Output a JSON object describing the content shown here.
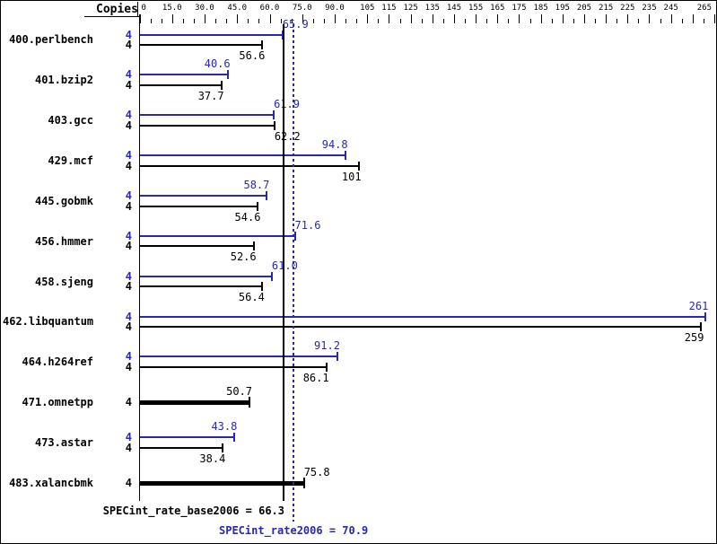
{
  "header": {
    "copies_label": "Copies"
  },
  "chart_data": {
    "type": "bar",
    "orientation": "horizontal",
    "axis": {
      "min": 0,
      "max": 265,
      "minor_step": 5,
      "major_ticks": [
        {
          "value": 0,
          "label": "0"
        },
        {
          "value": 15,
          "label": "15.0"
        },
        {
          "value": 30,
          "label": "30.0"
        },
        {
          "value": 45,
          "label": "45.0"
        },
        {
          "value": 60,
          "label": "60.0"
        },
        {
          "value": 75,
          "label": "75.0"
        },
        {
          "value": 90,
          "label": "90.0"
        },
        {
          "value": 105,
          "label": "105"
        },
        {
          "value": 115,
          "label": "115"
        },
        {
          "value": 125,
          "label": "125"
        },
        {
          "value": 135,
          "label": "135"
        },
        {
          "value": 145,
          "label": "145"
        },
        {
          "value": 155,
          "label": "155"
        },
        {
          "value": 165,
          "label": "165"
        },
        {
          "value": 175,
          "label": "175"
        },
        {
          "value": 185,
          "label": "185"
        },
        {
          "value": 195,
          "label": "195"
        },
        {
          "value": 205,
          "label": "205"
        },
        {
          "value": 215,
          "label": "215"
        },
        {
          "value": 225,
          "label": "225"
        },
        {
          "value": 235,
          "label": "235"
        },
        {
          "value": 245,
          "label": "245"
        },
        {
          "value": 255,
          "label": ""
        },
        {
          "value": 265,
          "label": "265"
        }
      ]
    },
    "series_names": [
      "peak",
      "base"
    ],
    "rows": [
      {
        "name": "400.perlbench",
        "peak": {
          "copies": "4",
          "value": 65.9,
          "label": "65.9"
        },
        "base": {
          "copies": "4",
          "value": 56.6,
          "label": "56.6"
        }
      },
      {
        "name": "401.bzip2",
        "peak": {
          "copies": "4",
          "value": 40.6,
          "label": "40.6"
        },
        "base": {
          "copies": "4",
          "value": 37.7,
          "label": "37.7"
        }
      },
      {
        "name": "403.gcc",
        "peak": {
          "copies": "4",
          "value": 61.9,
          "label": "61.9"
        },
        "base": {
          "copies": "4",
          "value": 62.2,
          "label": "62.2"
        }
      },
      {
        "name": "429.mcf",
        "peak": {
          "copies": "4",
          "value": 94.8,
          "label": "94.8"
        },
        "base": {
          "copies": "4",
          "value": 101,
          "label": "101"
        }
      },
      {
        "name": "445.gobmk",
        "peak": {
          "copies": "4",
          "value": 58.7,
          "label": "58.7"
        },
        "base": {
          "copies": "4",
          "value": 54.6,
          "label": "54.6"
        }
      },
      {
        "name": "456.hmmer",
        "peak": {
          "copies": "4",
          "value": 71.6,
          "label": "71.6"
        },
        "base": {
          "copies": "4",
          "value": 52.6,
          "label": "52.6"
        }
      },
      {
        "name": "458.sjeng",
        "peak": {
          "copies": "4",
          "value": 61.0,
          "label": "61.0"
        },
        "base": {
          "copies": "4",
          "value": 56.4,
          "label": "56.4"
        }
      },
      {
        "name": "462.libquantum",
        "peak": {
          "copies": "4",
          "value": 261,
          "label": "261"
        },
        "base": {
          "copies": "4",
          "value": 259,
          "label": "259"
        }
      },
      {
        "name": "464.h264ref",
        "peak": {
          "copies": "4",
          "value": 91.2,
          "label": "91.2"
        },
        "base": {
          "copies": "4",
          "value": 86.1,
          "label": "86.1"
        }
      },
      {
        "name": "471.omnetpp",
        "single": {
          "copies": "4",
          "value": 50.7,
          "label": "50.7"
        }
      },
      {
        "name": "473.astar",
        "peak": {
          "copies": "4",
          "value": 43.8,
          "label": "43.8"
        },
        "base": {
          "copies": "4",
          "value": 38.4,
          "label": "38.4"
        }
      },
      {
        "name": "483.xalancbmk",
        "single": {
          "copies": "4",
          "value": 75.8,
          "label": "75.8"
        }
      }
    ],
    "references": {
      "base": {
        "value": 66.3,
        "label": "SPECint_rate_base2006 = 66.3"
      },
      "peak": {
        "value": 70.9,
        "label": "SPECint_rate2006 = 70.9"
      }
    },
    "colors": {
      "peak": "#2828b4",
      "base": "#000000"
    }
  }
}
